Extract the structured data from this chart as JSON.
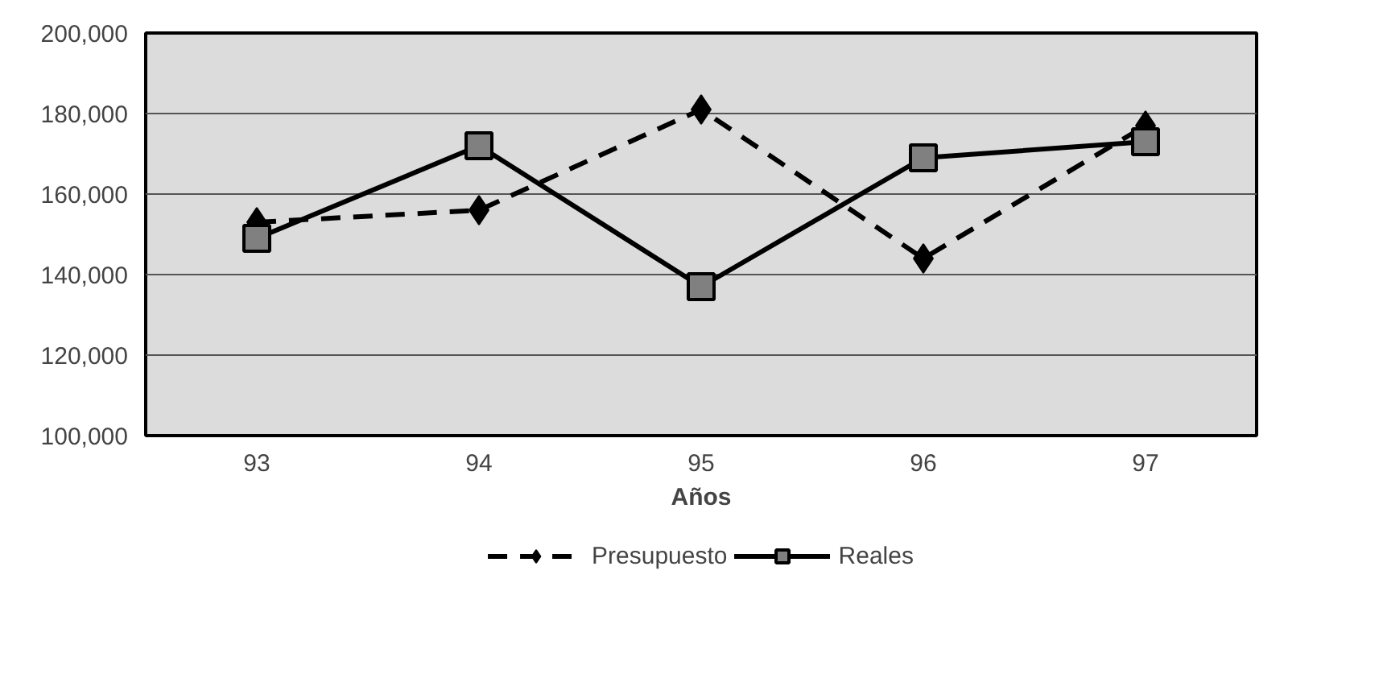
{
  "chart_data": {
    "type": "line",
    "xlabel": "Años",
    "categories": [
      "93",
      "94",
      "95",
      "96",
      "97"
    ],
    "series": [
      {
        "name": "Presupuesto",
        "color": "#000000",
        "marker": "diamond",
        "line_style": "dashed",
        "values": [
          153000,
          156000,
          181000,
          144000,
          177000
        ]
      },
      {
        "name": "Reales",
        "color": "#000000",
        "marker": "square",
        "line_style": "solid",
        "values": [
          149000,
          172000,
          137000,
          169000,
          173000
        ]
      }
    ],
    "ylim": [
      100000,
      200000
    ],
    "yticks": [
      {
        "value": 100000,
        "label": "100,000"
      },
      {
        "value": 120000,
        "label": "120,000"
      },
      {
        "value": 140000,
        "label": "140,000"
      },
      {
        "value": 160000,
        "label": "160,000"
      },
      {
        "value": 180000,
        "label": "180,000"
      },
      {
        "value": 200000,
        "label": "200,000"
      }
    ],
    "grid": "y",
    "legend": "bottom"
  }
}
